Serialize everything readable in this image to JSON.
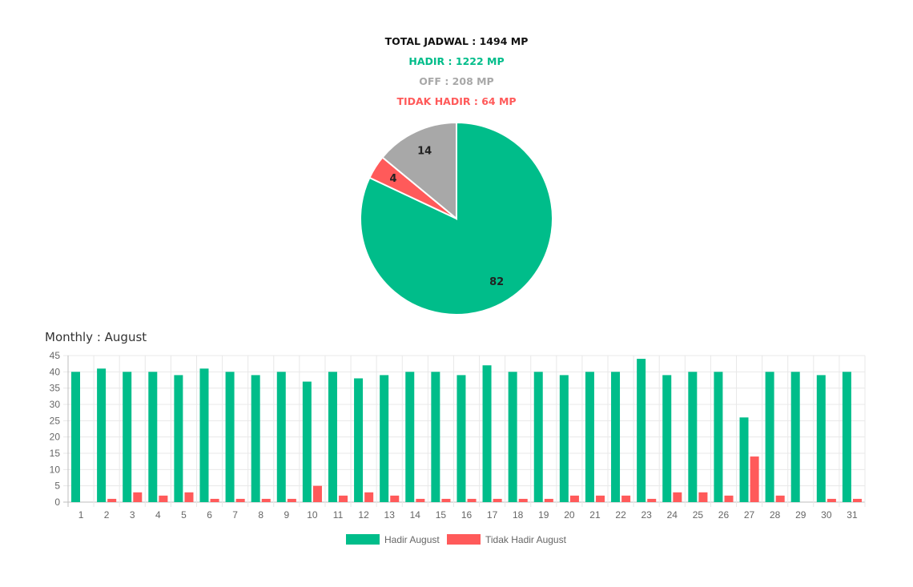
{
  "summary": {
    "total": "TOTAL JADWAL : 1494 MP",
    "hadir": "HADIR : 1222 MP",
    "off": "OFF : 208 MP",
    "tidak_hadir": "TIDAK HADIR : 64 MP"
  },
  "colors": {
    "hadir": "#00bd8a",
    "off": "#a8a8a8",
    "tidak_hadir": "#ff5a5a"
  },
  "monthly_title": "Monthly : August",
  "chart_data": [
    {
      "type": "pie",
      "slices": [
        {
          "key": "hadir",
          "value": 82,
          "label": "82",
          "color": "#00bd8a"
        },
        {
          "key": "tidak_hadir",
          "value": 4,
          "label": "4",
          "color": "#ff5a5a"
        },
        {
          "key": "off",
          "value": 14,
          "label": "14",
          "color": "#a8a8a8"
        }
      ]
    },
    {
      "type": "bar",
      "categories": [
        "1",
        "2",
        "3",
        "4",
        "5",
        "6",
        "7",
        "8",
        "9",
        "10",
        "11",
        "12",
        "13",
        "14",
        "15",
        "16",
        "17",
        "18",
        "19",
        "20",
        "21",
        "22",
        "23",
        "24",
        "25",
        "26",
        "27",
        "28",
        "29",
        "30",
        "31"
      ],
      "series": [
        {
          "name": "Hadir August",
          "color": "#00bd8a",
          "values": [
            40,
            41,
            40,
            40,
            39,
            41,
            40,
            39,
            40,
            37,
            40,
            38,
            39,
            40,
            40,
            39,
            42,
            40,
            40,
            39,
            40,
            40,
            44,
            39,
            40,
            40,
            26,
            40,
            40,
            39,
            40
          ]
        },
        {
          "name": "Tidak Hadir August",
          "color": "#ff5a5a",
          "values": [
            0,
            1,
            3,
            2,
            3,
            1,
            1,
            1,
            1,
            5,
            2,
            3,
            2,
            1,
            1,
            1,
            1,
            1,
            1,
            2,
            2,
            2,
            1,
            3,
            3,
            2,
            14,
            2,
            0,
            1,
            1
          ]
        }
      ],
      "ylim": [
        0,
        45
      ],
      "yticks": [
        0,
        5,
        10,
        15,
        20,
        25,
        30,
        35,
        40,
        45
      ],
      "grid": true,
      "legend": "bottom"
    }
  ]
}
